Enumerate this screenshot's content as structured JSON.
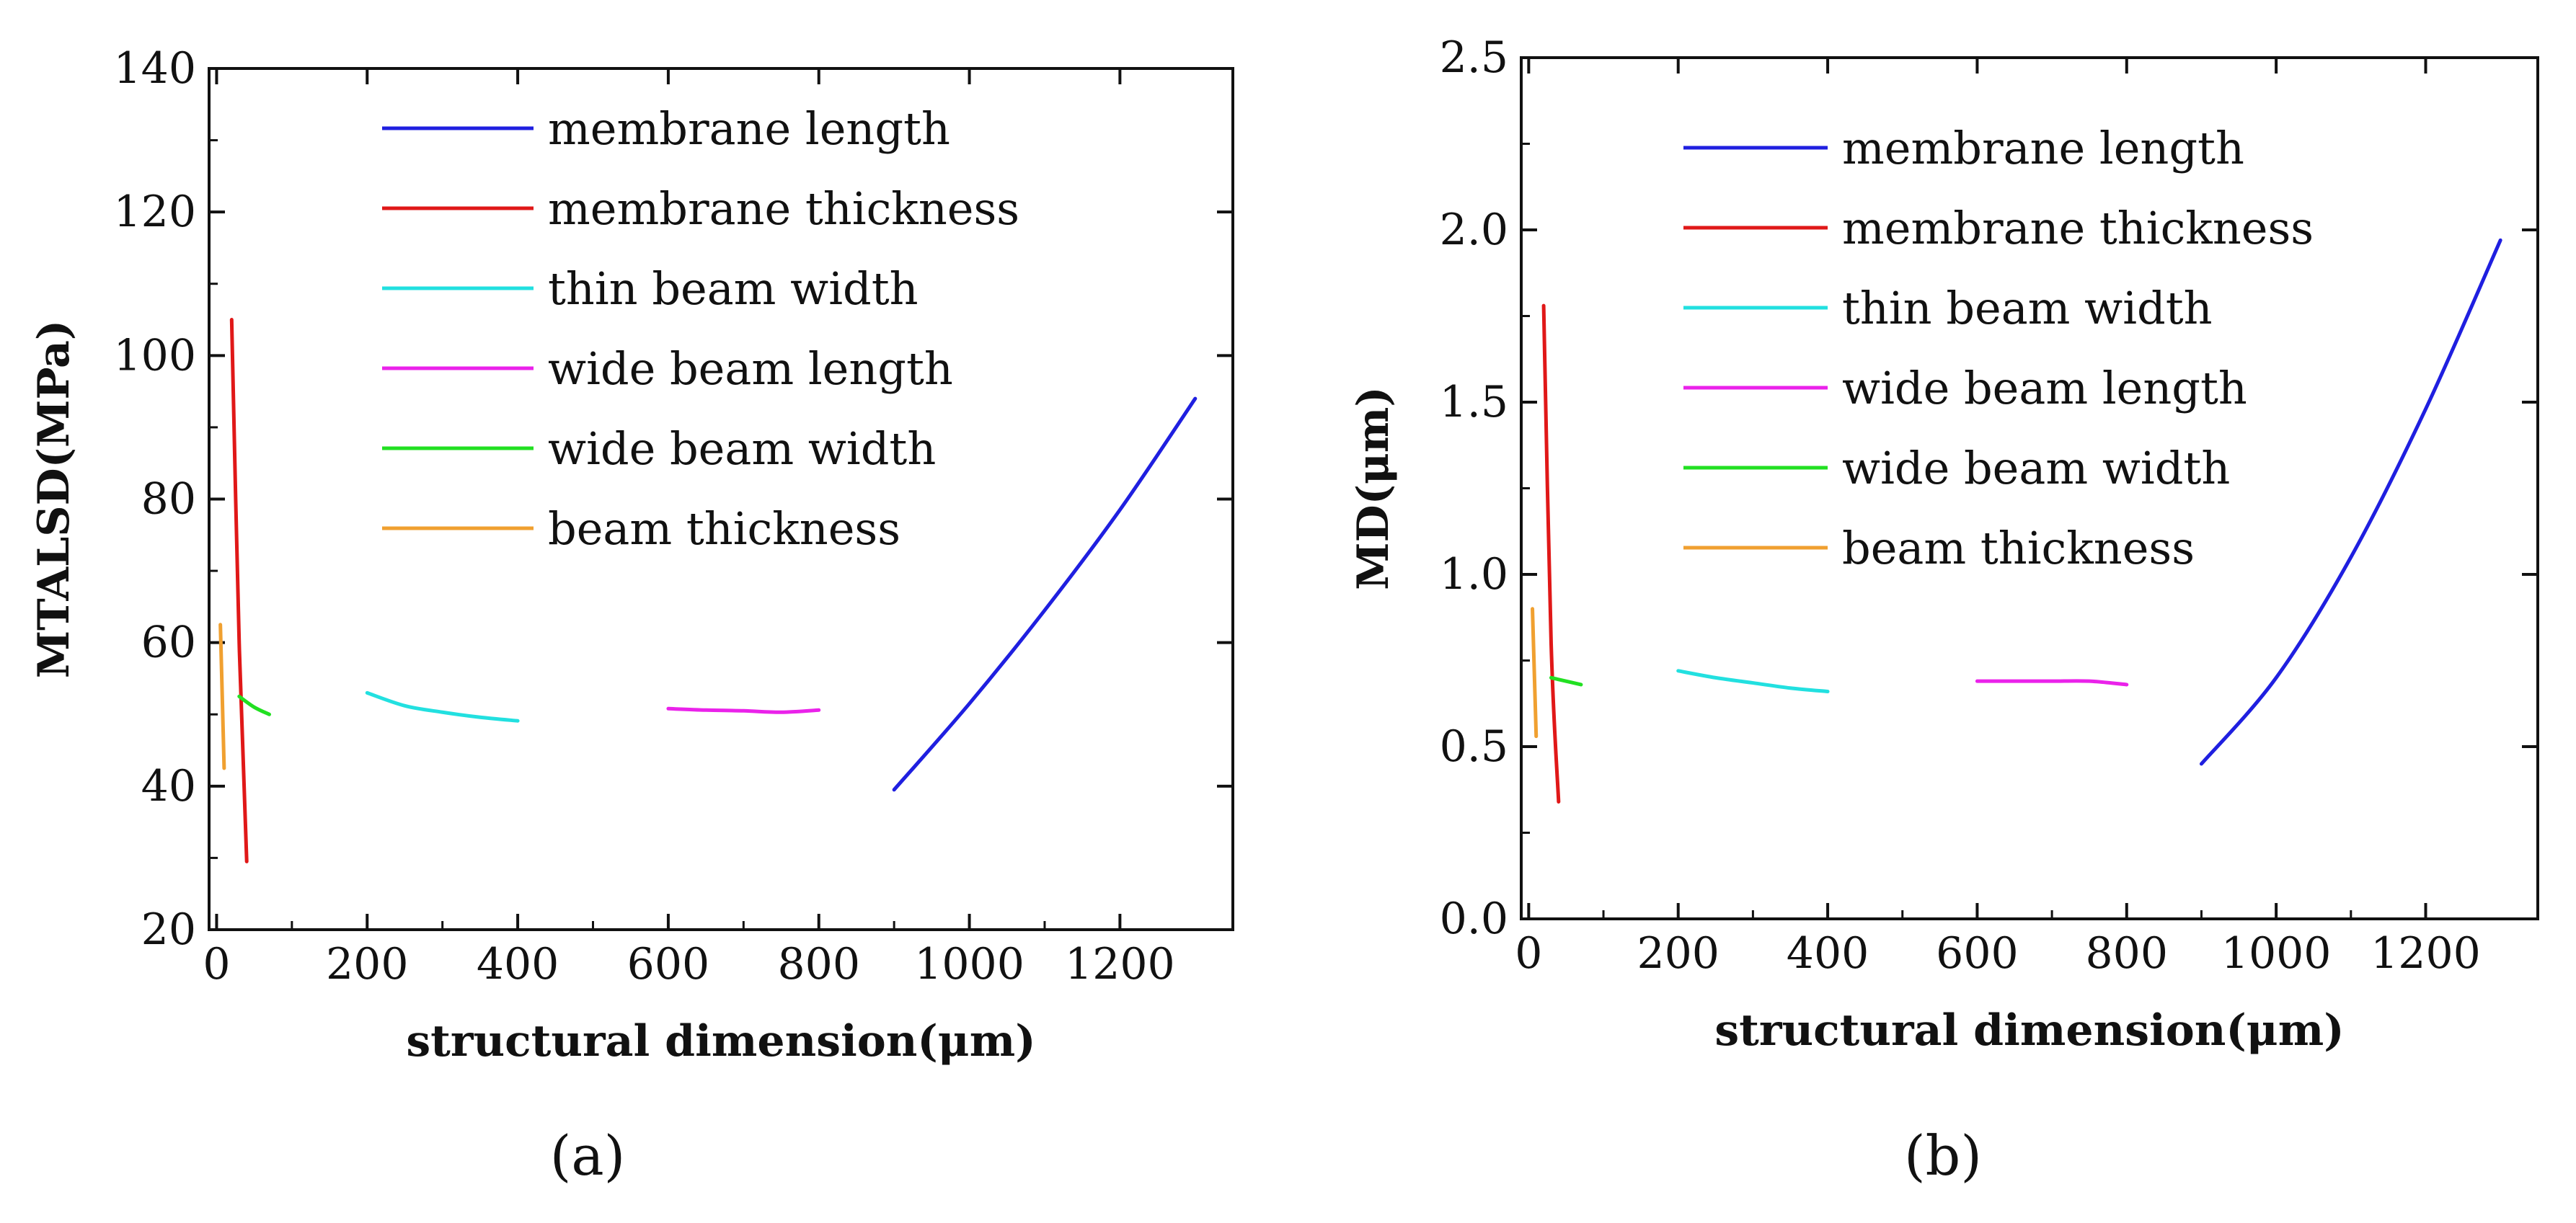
{
  "figure": {
    "captions": [
      "(a)",
      "(b)"
    ]
  },
  "chart_data": [
    {
      "type": "line",
      "panel": "(a)",
      "title": "",
      "xlabel": "structural dimension(μm)",
      "ylabel": "MTALSD(MPa)",
      "xlim": [
        -10,
        1350
      ],
      "ylim": [
        20,
        140
      ],
      "xticks": [
        0,
        200,
        400,
        600,
        800,
        1000,
        1200
      ],
      "yticks": [
        20,
        40,
        60,
        80,
        100,
        120,
        140
      ],
      "legend_position": "top",
      "series": [
        {
          "name": "membrane length",
          "color": "#1f1fe0",
          "x": [
            900,
            1000,
            1100,
            1200,
            1300
          ],
          "y": [
            39.5,
            51.5,
            64.5,
            78.5,
            94
          ]
        },
        {
          "name": "membrane thickness",
          "color": "#e01818",
          "x": [
            20,
            30,
            40
          ],
          "y": [
            105,
            60,
            29.5
          ]
        },
        {
          "name": "thin beam width",
          "color": "#22e0e0",
          "x": [
            200,
            250,
            300,
            350,
            400
          ],
          "y": [
            53,
            51.2,
            50.3,
            49.6,
            49.1
          ]
        },
        {
          "name": "wide beam length",
          "color": "#ea22ea",
          "x": [
            600,
            650,
            700,
            750,
            800
          ],
          "y": [
            50.8,
            50.6,
            50.5,
            50.3,
            50.6
          ]
        },
        {
          "name": "wide beam width",
          "color": "#22e022",
          "x": [
            30,
            50,
            70
          ],
          "y": [
            52.5,
            51,
            50
          ]
        },
        {
          "name": "beam thickness",
          "color": "#f0a030",
          "x": [
            5,
            10
          ],
          "y": [
            62.5,
            42.5
          ]
        }
      ]
    },
    {
      "type": "line",
      "panel": "(b)",
      "title": "",
      "xlabel": "structural dimension(μm)",
      "ylabel": "MD(μm)",
      "xlim": [
        -10,
        1350
      ],
      "ylim": [
        0,
        2.5
      ],
      "xticks": [
        0,
        200,
        400,
        600,
        800,
        1000,
        1200
      ],
      "yticks": [
        0.0,
        0.5,
        1.0,
        1.5,
        2.0,
        2.5
      ],
      "ytick_labels": [
        "0.0",
        "0.5",
        "1.0",
        "1.5",
        "2.0",
        "2.5"
      ],
      "legend_position": "top",
      "series": [
        {
          "name": "membrane length",
          "color": "#1f1fe0",
          "x": [
            900,
            1000,
            1100,
            1200,
            1300
          ],
          "y": [
            0.45,
            0.7,
            1.05,
            1.48,
            1.97
          ]
        },
        {
          "name": "membrane thickness",
          "color": "#e01818",
          "x": [
            20,
            30,
            40
          ],
          "y": [
            1.78,
            0.8,
            0.34
          ]
        },
        {
          "name": "thin beam width",
          "color": "#22e0e0",
          "x": [
            200,
            250,
            300,
            350,
            400
          ],
          "y": [
            0.72,
            0.7,
            0.685,
            0.67,
            0.66
          ]
        },
        {
          "name": "wide beam length",
          "color": "#ea22ea",
          "x": [
            600,
            650,
            700,
            750,
            800
          ],
          "y": [
            0.69,
            0.69,
            0.69,
            0.69,
            0.68
          ]
        },
        {
          "name": "wide beam width",
          "color": "#22e022",
          "x": [
            30,
            50,
            70
          ],
          "y": [
            0.7,
            0.69,
            0.68
          ]
        },
        {
          "name": "beam thickness",
          "color": "#f0a030",
          "x": [
            5,
            10
          ],
          "y": [
            0.9,
            0.53
          ]
        }
      ]
    }
  ]
}
